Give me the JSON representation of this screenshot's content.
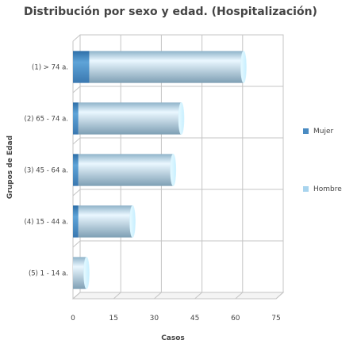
{
  "chart_data": {
    "type": "bar",
    "orientation": "horizontal",
    "stacked": true,
    "three_d": true,
    "title": "Distribución por sexo y edad. (Hospitalización)",
    "xlabel": "Casos",
    "ylabel": "Grupos de Edad",
    "categories": [
      "(1) > 74 a.",
      "(2) 65 - 74 a.",
      "(3) 45 - 64 a.",
      "(4) 15 - 44 a.",
      "(5) 1 - 14 a."
    ],
    "series": [
      {
        "name": "Mujer",
        "color": "#4a8bc2",
        "values": [
          6,
          2,
          2,
          2,
          0
        ]
      },
      {
        "name": "Hombre",
        "color": "#a8d4ee",
        "values": [
          57,
          38,
          35,
          20,
          5
        ]
      }
    ],
    "xlim": [
      0,
      75
    ],
    "xticks": [
      0,
      15,
      30,
      45,
      60,
      75
    ],
    "grid": true,
    "legend_position": "right"
  }
}
